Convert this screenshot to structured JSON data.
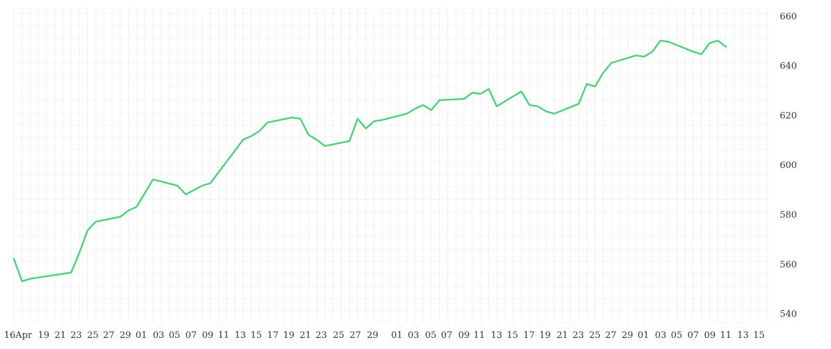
{
  "chart_data": {
    "type": "line",
    "title": "",
    "xlabel": "",
    "ylabel": "",
    "x_tick_labels": [
      "16Apr",
      "19",
      "21",
      "23",
      "25",
      "27",
      "29",
      "01",
      "03",
      "05",
      "07",
      "09",
      "11",
      "13",
      "15",
      "17",
      "19",
      "21",
      "23",
      "25",
      "27",
      "29",
      "01",
      "03",
      "05",
      "07",
      "09",
      "11",
      "13",
      "15",
      "17",
      "19",
      "21",
      "23",
      "25",
      "27",
      "29",
      "01",
      "03",
      "05",
      "07",
      "09",
      "11",
      "13",
      "15"
    ],
    "y_ticks": [
      540,
      560,
      580,
      600,
      620,
      640,
      660
    ],
    "ylim": [
      536,
      663
    ],
    "grid": true,
    "y_axis_side": "right",
    "series": [
      {
        "color": "#4fd17b",
        "x": [
          "2020-04-16",
          "2020-04-17",
          "2020-04-18",
          "2020-04-23",
          "2020-04-24",
          "2020-04-25",
          "2020-04-26",
          "2020-04-29",
          "2020-04-30",
          "2020-05-01",
          "2020-05-03",
          "2020-05-06",
          "2020-05-07",
          "2020-05-09",
          "2020-05-10",
          "2020-05-14",
          "2020-05-15",
          "2020-05-16",
          "2020-05-17",
          "2020-05-20",
          "2020-05-21",
          "2020-05-22",
          "2020-05-23",
          "2020-05-24",
          "2020-05-27",
          "2020-05-28",
          "2020-05-29",
          "2020-05-30",
          "2020-05-31",
          "2020-06-03",
          "2020-06-04",
          "2020-06-05",
          "2020-06-06",
          "2020-06-07",
          "2020-06-10",
          "2020-06-11",
          "2020-06-12",
          "2020-06-13",
          "2020-06-14",
          "2020-06-17",
          "2020-06-18",
          "2020-06-19",
          "2020-06-20",
          "2020-06-21",
          "2020-06-24",
          "2020-06-25",
          "2020-06-26",
          "2020-06-27",
          "2020-06-28",
          "2020-07-01",
          "2020-07-02",
          "2020-07-03",
          "2020-07-04",
          "2020-07-05",
          "2020-07-08",
          "2020-07-09",
          "2020-07-10",
          "2020-07-11",
          "2020-07-12"
        ],
        "values": [
          562,
          553,
          554,
          556.5,
          564.5,
          573.5,
          577,
          579,
          581.5,
          583,
          594,
          591.5,
          588,
          591.5,
          592.5,
          610,
          611.5,
          613.5,
          617,
          619,
          618.5,
          612,
          610,
          607.5,
          609.5,
          618.5,
          614.5,
          617.5,
          618,
          620.5,
          622.5,
          624,
          622,
          626,
          626.5,
          629,
          628.5,
          630.5,
          623.5,
          629.5,
          624,
          623.5,
          621.5,
          620.5,
          624.5,
          632.5,
          631.5,
          637,
          641,
          644,
          643.5,
          645.5,
          650,
          649.5,
          645.5,
          644.5,
          649,
          650,
          647.5
        ]
      }
    ]
  }
}
